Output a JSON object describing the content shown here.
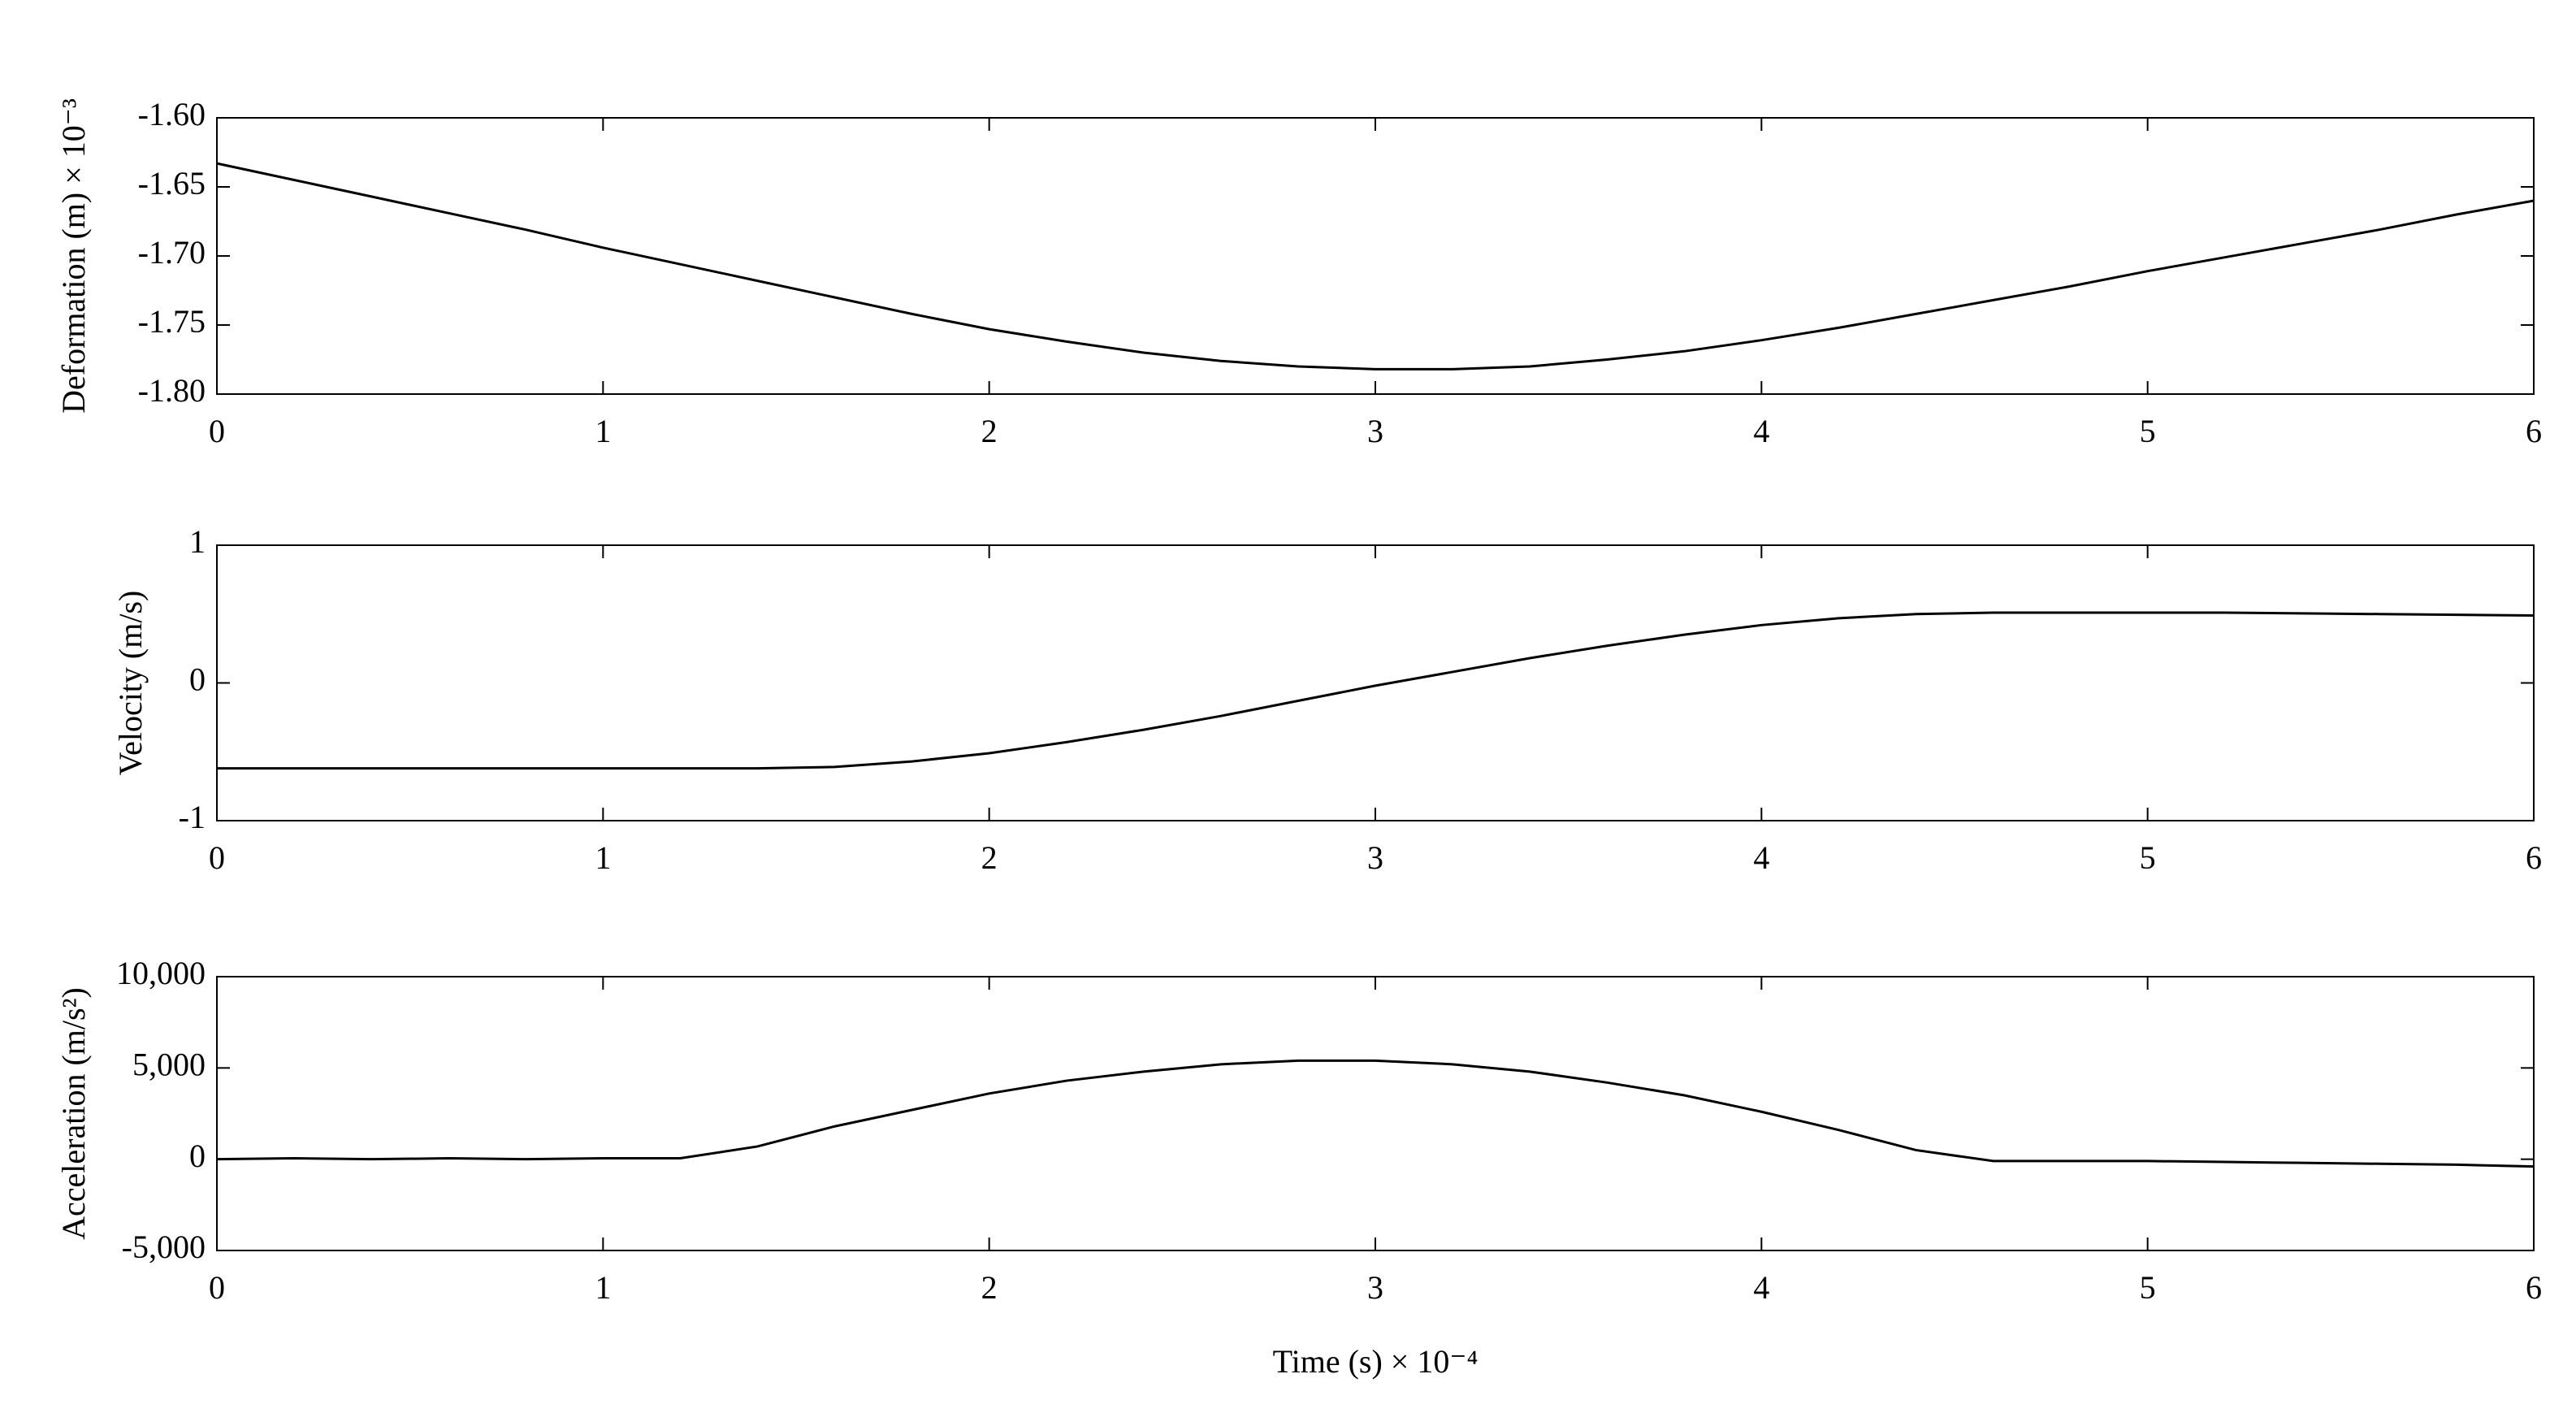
{
  "chart_data": [
    {
      "type": "line",
      "y_label": "Deformation (m) × 10⁻³",
      "color": "#000000",
      "x": [
        0,
        0.2,
        0.4,
        0.6,
        0.8,
        1.0,
        1.2,
        1.4,
        1.6,
        1.8,
        2.0,
        2.2,
        2.4,
        2.6,
        2.8,
        3.0,
        3.2,
        3.4,
        3.6,
        3.8,
        4.0,
        4.2,
        4.4,
        4.6,
        4.8,
        5.0,
        5.2,
        5.4,
        5.6,
        5.8,
        6.0
      ],
      "values": [
        -1.633,
        -1.645,
        -1.657,
        -1.669,
        -1.681,
        -1.694,
        -1.706,
        -1.718,
        -1.73,
        -1.742,
        -1.753,
        -1.762,
        -1.77,
        -1.776,
        -1.78,
        -1.782,
        -1.782,
        -1.78,
        -1.775,
        -1.769,
        -1.761,
        -1.752,
        -1.742,
        -1.732,
        -1.722,
        -1.711,
        -1.701,
        -1.691,
        -1.681,
        -1.67,
        -1.66
      ],
      "xlim": [
        0,
        6
      ],
      "xticks": [
        0,
        1,
        2,
        3,
        4,
        5,
        6
      ],
      "ylim": [
        -1.8,
        -1.6
      ],
      "yticks": [
        {
          "value": -1.8,
          "label": "-1.80"
        },
        {
          "value": -1.75,
          "label": "-1.75"
        },
        {
          "value": -1.7,
          "label": "-1.70"
        },
        {
          "value": -1.65,
          "label": "-1.65"
        },
        {
          "value": -1.6,
          "label": "-1.60"
        }
      ]
    },
    {
      "type": "line",
      "y_label": "Velocity (m/s)",
      "color": "#000000",
      "x": [
        0,
        0.2,
        0.4,
        0.6,
        0.8,
        1.0,
        1.2,
        1.4,
        1.6,
        1.8,
        2.0,
        2.2,
        2.4,
        2.6,
        2.8,
        3.0,
        3.2,
        3.4,
        3.6,
        3.8,
        4.0,
        4.2,
        4.4,
        4.6,
        4.8,
        5.0,
        5.2,
        5.4,
        5.6,
        5.8,
        6.0
      ],
      "values": [
        -0.62,
        -0.62,
        -0.62,
        -0.62,
        -0.62,
        -0.62,
        -0.62,
        -0.62,
        -0.61,
        -0.57,
        -0.51,
        -0.43,
        -0.34,
        -0.24,
        -0.13,
        -0.02,
        0.08,
        0.18,
        0.27,
        0.35,
        0.42,
        0.47,
        0.5,
        0.51,
        0.51,
        0.51,
        0.51,
        0.505,
        0.5,
        0.495,
        0.49
      ],
      "xlim": [
        0,
        6
      ],
      "xticks": [
        0,
        1,
        2,
        3,
        4,
        5,
        6
      ],
      "ylim": [
        -1,
        1
      ],
      "yticks": [
        -1,
        0,
        1
      ]
    },
    {
      "type": "line",
      "y_label": "Acceleration (m/s²)",
      "x_label": "Time (s) × 10⁻⁴",
      "color": "#000000",
      "x": [
        0,
        0.2,
        0.4,
        0.6,
        0.8,
        1.0,
        1.2,
        1.4,
        1.6,
        1.8,
        2.0,
        2.2,
        2.4,
        2.6,
        2.8,
        3.0,
        3.2,
        3.4,
        3.6,
        3.8,
        4.0,
        4.2,
        4.4,
        4.6,
        4.8,
        5.0,
        5.2,
        5.4,
        5.6,
        5.8,
        6.0
      ],
      "values": [
        0,
        50,
        0,
        50,
        0,
        50,
        50,
        700,
        1800,
        2700,
        3600,
        4300,
        4800,
        5200,
        5400,
        5400,
        5200,
        4800,
        4200,
        3500,
        2600,
        1600,
        500,
        -100,
        -100,
        -100,
        -150,
        -200,
        -250,
        -300,
        -400
      ],
      "xlim": [
        0,
        6
      ],
      "xticks": [
        0,
        1,
        2,
        3,
        4,
        5,
        6
      ],
      "ylim": [
        -5000,
        10000
      ],
      "yticks": [
        {
          "value": -5000,
          "label": "-5,000"
        },
        0,
        {
          "value": 5000,
          "label": "5,000"
        },
        {
          "value": 10000,
          "label": "10,000"
        }
      ]
    }
  ]
}
